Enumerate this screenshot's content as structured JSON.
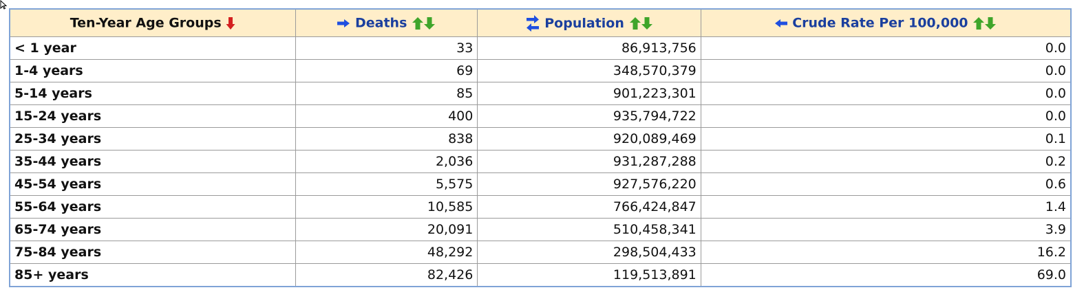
{
  "columns": [
    {
      "label": "Ten-Year Age Groups",
      "icon": "red-down-arrow-icon"
    },
    {
      "label": "Deaths",
      "lead_icon": "blue-right-arrow-icon",
      "sort_icon": "green-up-down-arrows-icon"
    },
    {
      "label": "Population",
      "lead_icon": "blue-swap-arrows-icon",
      "sort_icon": "green-up-down-arrows-icon"
    },
    {
      "label": "Crude Rate Per 100,000",
      "lead_icon": "blue-left-arrow-icon",
      "sort_icon": "green-up-down-arrows-icon"
    }
  ],
  "rows": [
    {
      "age": "< 1 year",
      "deaths": "33",
      "population": "86,913,756",
      "rate": "0.0"
    },
    {
      "age": "1-4 years",
      "deaths": "69",
      "population": "348,570,379",
      "rate": "0.0"
    },
    {
      "age": "5-14 years",
      "deaths": "85",
      "population": "901,223,301",
      "rate": "0.0"
    },
    {
      "age": "15-24 years",
      "deaths": "400",
      "population": "935,794,722",
      "rate": "0.0"
    },
    {
      "age": "25-34 years",
      "deaths": "838",
      "population": "920,089,469",
      "rate": "0.1"
    },
    {
      "age": "35-44 years",
      "deaths": "2,036",
      "population": "931,287,288",
      "rate": "0.2"
    },
    {
      "age": "45-54 years",
      "deaths": "5,575",
      "population": "927,576,220",
      "rate": "0.6"
    },
    {
      "age": "55-64 years",
      "deaths": "10,585",
      "population": "766,424,847",
      "rate": "1.4"
    },
    {
      "age": "65-74 years",
      "deaths": "20,091",
      "population": "510,458,341",
      "rate": "3.9"
    },
    {
      "age": "75-84 years",
      "deaths": "48,292",
      "population": "298,504,433",
      "rate": "16.2"
    },
    {
      "age": "85+ years",
      "deaths": "82,426",
      "population": "119,513,891",
      "rate": "69.0"
    }
  ],
  "colors": {
    "header_bg": "#ffeec9",
    "header_text_blue": "#1a3f9e",
    "sort_green": "#3fa52a",
    "sort_red": "#d42020",
    "border": "#7fa3d6"
  }
}
